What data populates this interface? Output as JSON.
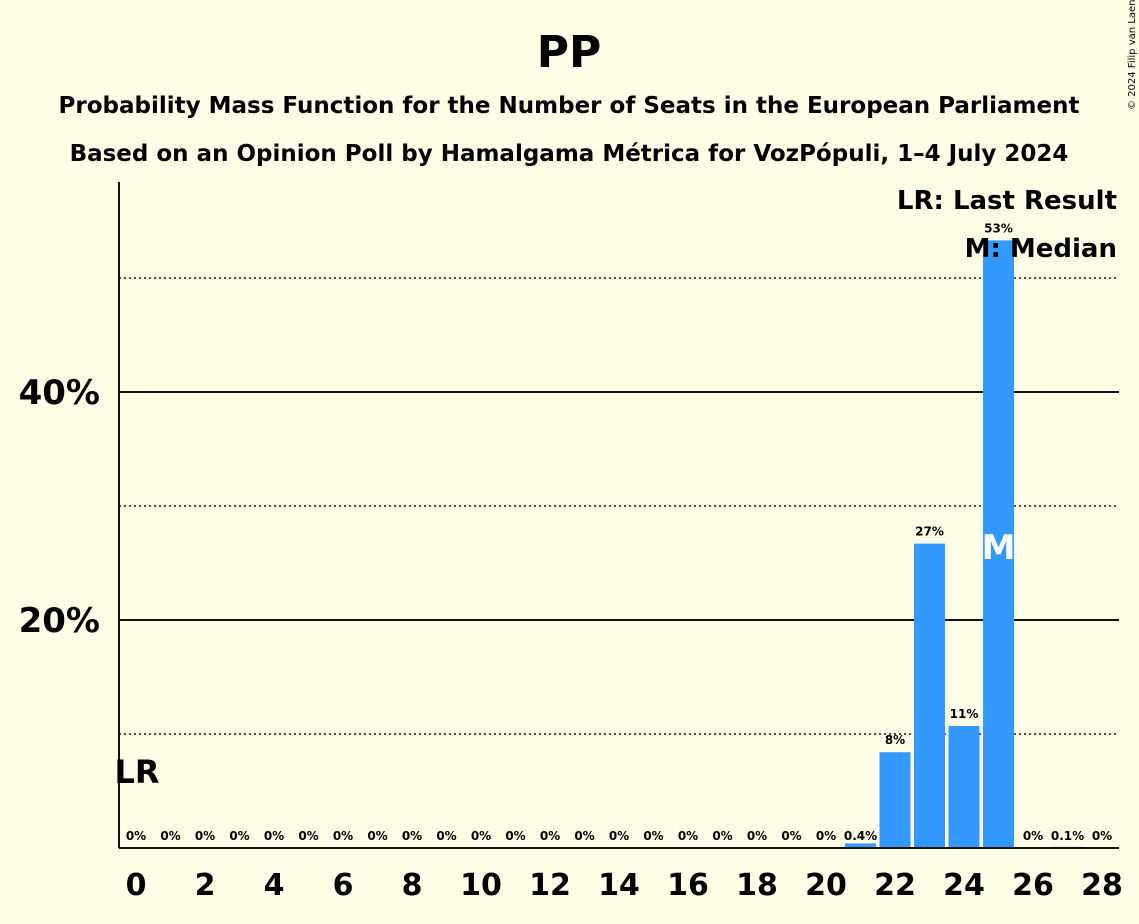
{
  "chart_data": {
    "type": "bar",
    "title": "PP",
    "subtitle_line1": "Probability Mass Function for the Number of Seats in the European Parliament",
    "subtitle_line2": "Based on an Opinion Poll by Hamalgama Métrica for VozPópuli, 1–4 July 2024",
    "copyright": "© 2024 Filip van Laenen",
    "legend": {
      "lr": "LR: Last Result",
      "median": "M: Median",
      "placement": "top-right"
    },
    "lr_marker": "LR",
    "median_marker": "M",
    "last_result_seat": 0,
    "median_seat": 25,
    "categories": [
      0,
      1,
      2,
      3,
      4,
      5,
      6,
      7,
      8,
      9,
      10,
      11,
      12,
      13,
      14,
      15,
      16,
      17,
      18,
      19,
      20,
      21,
      22,
      23,
      24,
      25,
      26,
      27,
      28
    ],
    "x_tick_labels": [
      "0",
      "2",
      "4",
      "6",
      "8",
      "10",
      "12",
      "14",
      "16",
      "18",
      "20",
      "22",
      "24",
      "26",
      "28"
    ],
    "values": [
      0,
      0,
      0,
      0,
      0,
      0,
      0,
      0,
      0,
      0,
      0,
      0,
      0,
      0,
      0,
      0,
      0,
      0,
      0,
      0,
      0,
      0.4,
      8.4,
      26.7,
      10.7,
      53.3,
      0,
      0.1,
      0
    ],
    "value_labels": [
      "0%",
      "0%",
      "0%",
      "0%",
      "0%",
      "0%",
      "0%",
      "0%",
      "0%",
      "0%",
      "0%",
      "0%",
      "0%",
      "0%",
      "0%",
      "0%",
      "0%",
      "0%",
      "0%",
      "0%",
      "0%",
      "0.4%",
      "8%",
      "27%",
      "11%",
      "53%",
      "0%",
      "0.1%",
      "0%"
    ],
    "y_tick_labels": [
      "20%",
      "40%"
    ],
    "ylim": [
      0,
      58
    ],
    "grid": {
      "solid": [
        20,
        40
      ],
      "dotted": [
        10,
        30,
        50
      ]
    },
    "colors": {
      "bar": "#3399FF",
      "background": "#FFFDE6",
      "text": "#111111"
    }
  }
}
